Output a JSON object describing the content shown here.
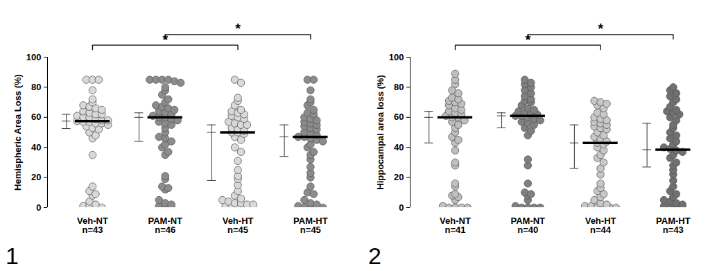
{
  "chart_data": [
    {
      "type": "scatter",
      "label": "1",
      "y_label": "Hemispheric Area Loss (%)",
      "marker": "circle",
      "categories": [
        "Veh-NT\nn=43",
        "PAM-NT\nn=46",
        "Veh-HT\nn=45",
        "PAM-HT\nn=45"
      ],
      "colors": [
        "#d9d9d9",
        "#8c8c8c",
        "#d9d9d9",
        "#8c8c8c"
      ],
      "ylim": [
        0,
        100
      ],
      "yticks": [
        0,
        20,
        40,
        60,
        80,
        100
      ],
      "points": [
        [
          85,
          85,
          85,
          78,
          72,
          70,
          68,
          67,
          66,
          65,
          64,
          63,
          62,
          62,
          61,
          60,
          60,
          59,
          58,
          58,
          57.5,
          57,
          57,
          56,
          56,
          55,
          54,
          53,
          52,
          50,
          48,
          46,
          35,
          14,
          11,
          9,
          8,
          4,
          2,
          1,
          1,
          0,
          0
        ],
        [
          85,
          85,
          85,
          85,
          84,
          83,
          80,
          78,
          75,
          72,
          70,
          68,
          67,
          66,
          65,
          64,
          63,
          62,
          61,
          60,
          60,
          59,
          58,
          57,
          56,
          55,
          53,
          50,
          47,
          46,
          44,
          42,
          40,
          37,
          35,
          21,
          19,
          14,
          13,
          12,
          5,
          3,
          2,
          1,
          1,
          0
        ],
        [
          85,
          83,
          73,
          71,
          68,
          65,
          64,
          63,
          62,
          61,
          60,
          59,
          57,
          56,
          55,
          55,
          53,
          52,
          51,
          50,
          50,
          49,
          47,
          45,
          40,
          37,
          31,
          25,
          21,
          19,
          15,
          11,
          8,
          6,
          5,
          4,
          3,
          3,
          2,
          2,
          1,
          1,
          0,
          0,
          0
        ],
        [
          85,
          85,
          78,
          72,
          70,
          68,
          65,
          63,
          62,
          60,
          59,
          58,
          57,
          56,
          55,
          54,
          53,
          52,
          50,
          49,
          48,
          47,
          47,
          46,
          45,
          44,
          42,
          40,
          37,
          35,
          32,
          27,
          23,
          20,
          14,
          10,
          9,
          5,
          3,
          2,
          1,
          0,
          0,
          0,
          0
        ]
      ],
      "medians": [
        57.5,
        60,
        50,
        47
      ],
      "iqr_low": [
        52.5,
        44,
        18,
        34
      ],
      "iqr_high": [
        62,
        63,
        55,
        55
      ],
      "significance": [
        {
          "from": 0,
          "to": 2,
          "label": "*"
        },
        {
          "from": 1,
          "to": 3,
          "label": "*"
        }
      ]
    },
    {
      "type": "scatter",
      "label": "2",
      "y_label": "Hippocampal area loss (%)",
      "marker": "circle",
      "categories": [
        "Veh-NT\nn=41",
        "PAM-NT\nn=40",
        "Veh-HT\nn=44",
        "PAM-HT\nn=43"
      ],
      "colors": [
        "#bfbfbf",
        "#808080",
        "#c8c8c8",
        "#707070"
      ],
      "ylim": [
        0,
        100
      ],
      "yticks": [
        0,
        20,
        40,
        60,
        80,
        100
      ],
      "points": [
        [
          89,
          85,
          82,
          78,
          76,
          73,
          72,
          71,
          70,
          69,
          68,
          66,
          65,
          64,
          63,
          62,
          61,
          60,
          60,
          58,
          57,
          55,
          53,
          50,
          47,
          45,
          43,
          38,
          30,
          28,
          16,
          14,
          9,
          8,
          7,
          5,
          1,
          0,
          0,
          0,
          0
        ],
        [
          85,
          83,
          82,
          80,
          78,
          76,
          74,
          72,
          71,
          70,
          68,
          66,
          65,
          64,
          63,
          62,
          62,
          61,
          61,
          60,
          59,
          58,
          57,
          56,
          55,
          53,
          51,
          48,
          32,
          28,
          16,
          10,
          9,
          8,
          5,
          1,
          0,
          0,
          0,
          0
        ],
        [
          71,
          70,
          69,
          68,
          66,
          63,
          62,
          60,
          59,
          58,
          57,
          56,
          55,
          54,
          53,
          52,
          50,
          48,
          47,
          45,
          44,
          43,
          42,
          40,
          38,
          35,
          33,
          30,
          26,
          22,
          16,
          13,
          11,
          9,
          7,
          5,
          3,
          2,
          1,
          1,
          0,
          0,
          0,
          0
        ],
        [
          80,
          78,
          76,
          74,
          72,
          70,
          67,
          65,
          64,
          63,
          62,
          60,
          58,
          55,
          53,
          50,
          48,
          46,
          44,
          42,
          40,
          39,
          38,
          37,
          35,
          33,
          30,
          28,
          25,
          22,
          18,
          14,
          11,
          9,
          7,
          5,
          4,
          3,
          2,
          1,
          0,
          0,
          0
        ]
      ],
      "medians": [
        60,
        61,
        43,
        38.5
      ],
      "iqr_low": [
        43,
        53,
        26,
        27
      ],
      "iqr_high": [
        64,
        63,
        55,
        56
      ],
      "significance": [
        {
          "from": 0,
          "to": 2,
          "label": "*"
        },
        {
          "from": 1,
          "to": 3,
          "label": "*"
        }
      ]
    }
  ]
}
